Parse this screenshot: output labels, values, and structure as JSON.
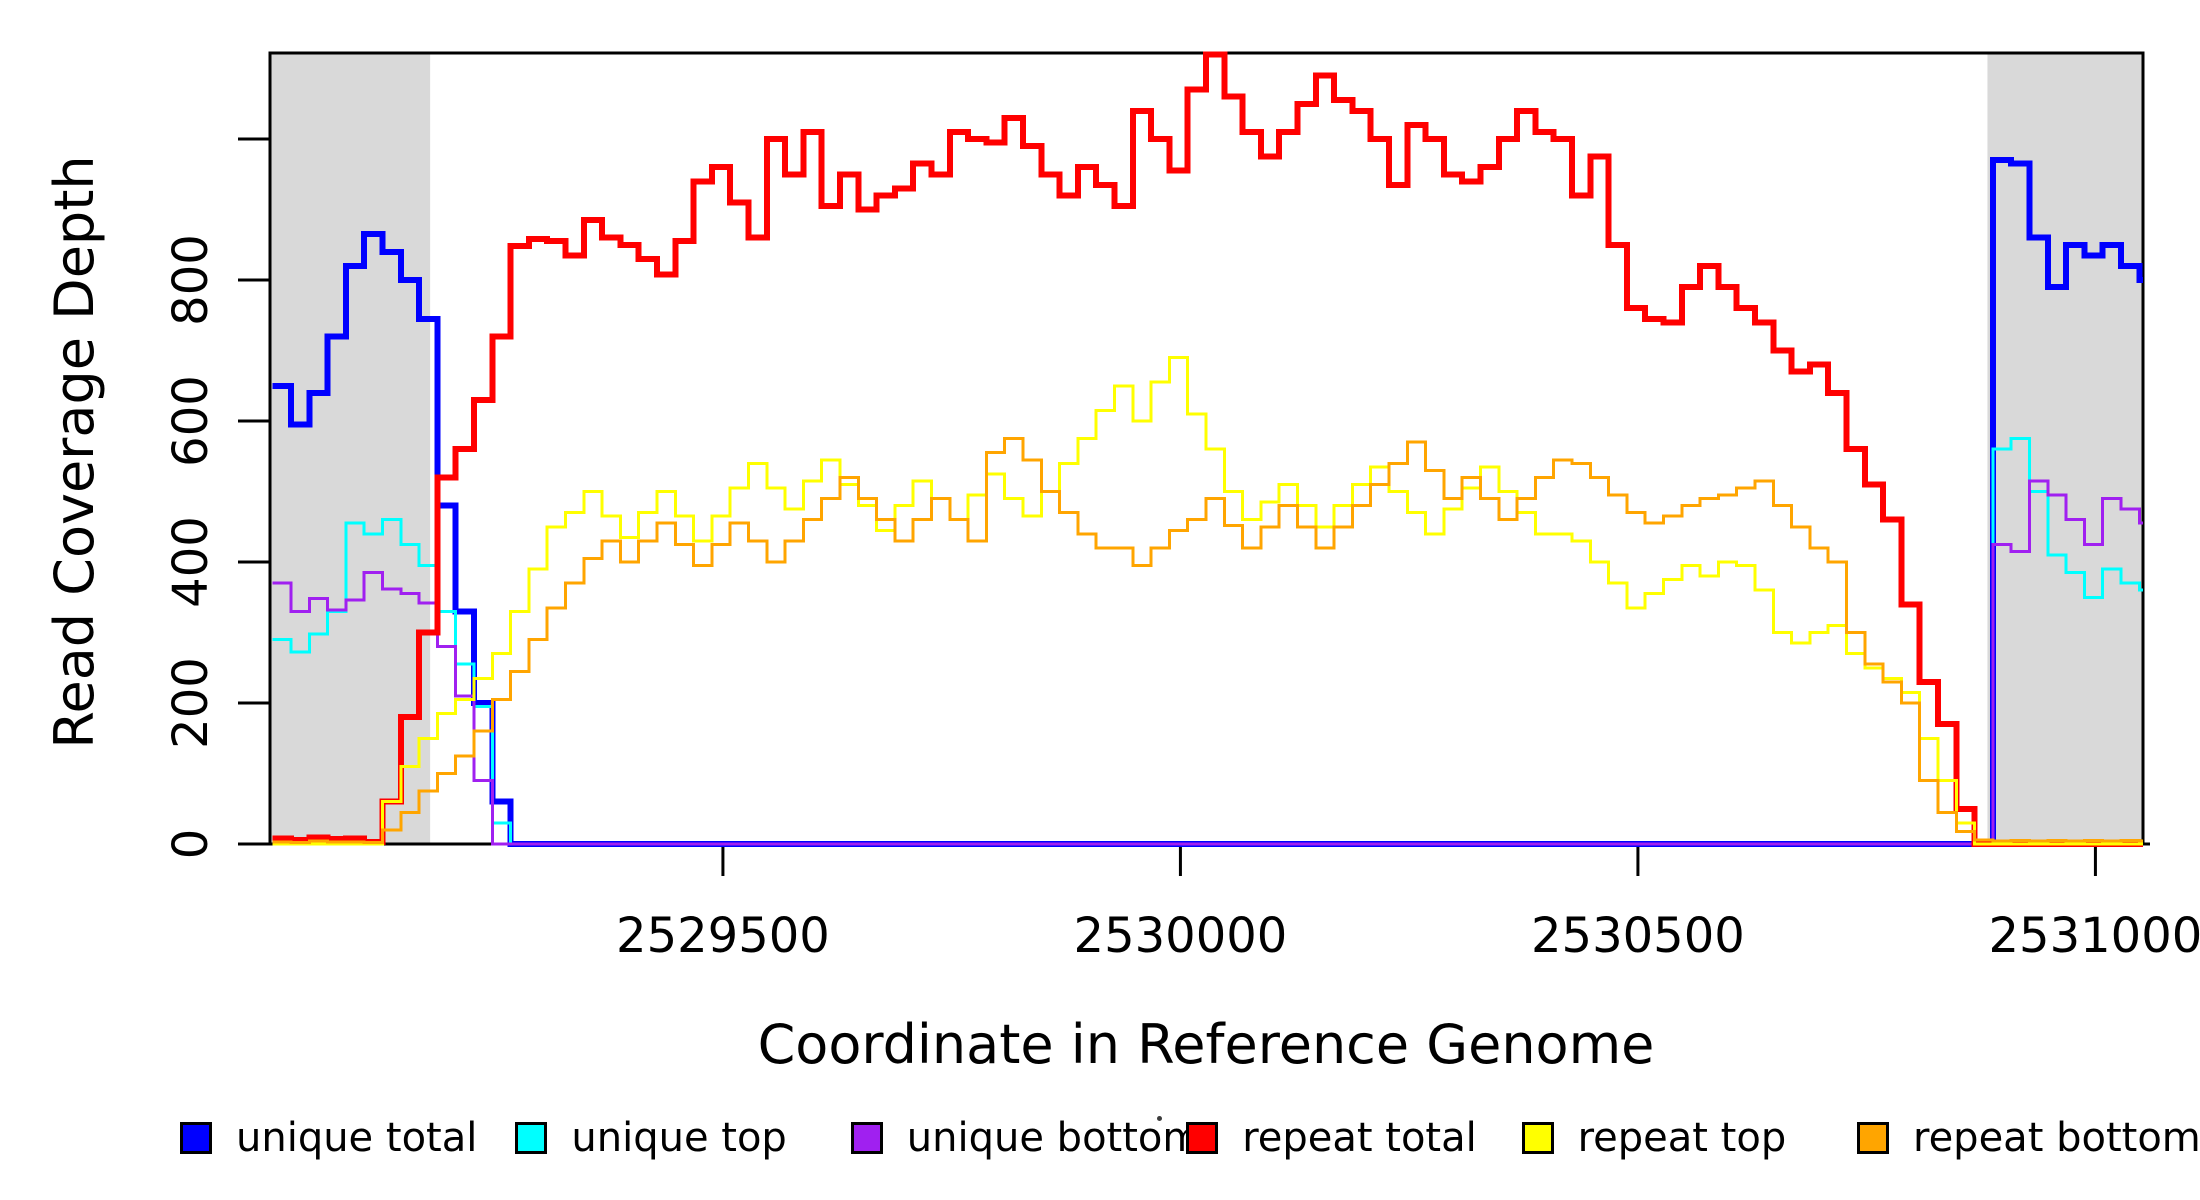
{
  "axes": {
    "x": {
      "label": "Coordinate in Reference Genome",
      "ticks": [
        {
          "value": 2529500,
          "label": "2529500"
        },
        {
          "value": 2530000,
          "label": "2530000"
        },
        {
          "value": 2530500,
          "label": "2530500"
        },
        {
          "value": 2531000,
          "label": "2531000"
        }
      ],
      "range": [
        2529005,
        2531052
      ]
    },
    "y": {
      "label": "Read Coverage Depth",
      "ticks": [
        {
          "value": 0,
          "label": "0"
        },
        {
          "value": 200,
          "label": "200"
        },
        {
          "value": 400,
          "label": "400"
        },
        {
          "value": 600,
          "label": "600"
        },
        {
          "value": 800,
          "label": "800"
        },
        {
          "value": 1000,
          "label": ""
        }
      ],
      "range": [
        0,
        1122
      ]
    }
  },
  "legend": {
    "items": [
      {
        "label": "unique total",
        "color": "#0000FF"
      },
      {
        "label": "unique top",
        "color": "#00FFFF"
      },
      {
        "label": "unique bottom",
        "color": "#A020F0"
      },
      {
        "label": "repeat total",
        "color": "#FF0000"
      },
      {
        "label": "repeat top",
        "color": "#FFFF00"
      },
      {
        "label": "repeat bottom",
        "color": "#FFA500"
      }
    ]
  },
  "chart_data": {
    "type": "line",
    "step": true,
    "grid": false,
    "title": "",
    "xlabel": "Coordinate in Reference Genome",
    "ylabel": "Read Coverage Depth",
    "legend_position": "bottom",
    "xlim": [
      2529005,
      2531052
    ],
    "ylim": [
      0,
      1122
    ],
    "x_ticks": [
      2529500,
      2530000,
      2530500,
      2531000
    ],
    "y_ticks": [
      0,
      200,
      400,
      600,
      800,
      1000
    ],
    "x_start": 2529008,
    "x_step": 20,
    "plot_bg": "#FFFFFF",
    "shaded_x_bands": [
      {
        "x1": 2529005,
        "x2": 2529180,
        "color": "#D9D9D9"
      },
      {
        "x1": 2530882,
        "x2": 2531052,
        "color": "#D9D9D9"
      }
    ],
    "series": [
      {
        "name": "unique total",
        "color": "#0000FF",
        "width": 6,
        "values": [
          650,
          595,
          640,
          720,
          820,
          865,
          840,
          800,
          745,
          480,
          330,
          200,
          60,
          0,
          0,
          0,
          0,
          0,
          0,
          0,
          0,
          0,
          0,
          0,
          0,
          0,
          0,
          0,
          0,
          0,
          0,
          0,
          0,
          0,
          0,
          0,
          0,
          0,
          0,
          0,
          0,
          0,
          0,
          0,
          0,
          0,
          0,
          0,
          0,
          0,
          0,
          0,
          0,
          0,
          0,
          0,
          0,
          0,
          0,
          0,
          0,
          0,
          0,
          0,
          0,
          0,
          0,
          0,
          0,
          0,
          0,
          0,
          0,
          0,
          0,
          0,
          0,
          0,
          0,
          0,
          0,
          0,
          0,
          0,
          0,
          0,
          0,
          0,
          0,
          0,
          0,
          0,
          0,
          0,
          970,
          965,
          860,
          790,
          850,
          835,
          850,
          820,
          800
        ]
      },
      {
        "name": "unique top",
        "color": "#00FFFF",
        "width": 3,
        "values": [
          290,
          272,
          298,
          330,
          455,
          440,
          460,
          425,
          395,
          330,
          255,
          195,
          30,
          0,
          0,
          0,
          0,
          0,
          0,
          0,
          0,
          0,
          0,
          0,
          0,
          0,
          0,
          0,
          0,
          0,
          0,
          0,
          0,
          0,
          0,
          0,
          0,
          0,
          0,
          0,
          0,
          0,
          0,
          0,
          0,
          0,
          0,
          0,
          0,
          0,
          0,
          0,
          0,
          0,
          0,
          0,
          0,
          0,
          0,
          0,
          0,
          0,
          0,
          0,
          0,
          0,
          0,
          0,
          0,
          0,
          0,
          0,
          0,
          0,
          0,
          0,
          0,
          0,
          0,
          0,
          0,
          0,
          0,
          0,
          0,
          0,
          0,
          0,
          0,
          0,
          0,
          0,
          0,
          0,
          560,
          575,
          500,
          410,
          385,
          350,
          390,
          370,
          360
        ]
      },
      {
        "name": "unique bottom",
        "color": "#A020F0",
        "width": 3,
        "values": [
          370,
          330,
          348,
          332,
          346,
          385,
          362,
          355,
          342,
          280,
          210,
          90,
          0,
          0,
          0,
          0,
          0,
          0,
          0,
          0,
          0,
          0,
          0,
          0,
          0,
          0,
          0,
          0,
          0,
          0,
          0,
          0,
          0,
          0,
          0,
          0,
          0,
          0,
          0,
          0,
          0,
          0,
          0,
          0,
          0,
          0,
          0,
          0,
          0,
          0,
          0,
          0,
          0,
          0,
          0,
          0,
          0,
          0,
          0,
          0,
          0,
          0,
          0,
          0,
          0,
          0,
          0,
          0,
          0,
          0,
          0,
          0,
          0,
          0,
          0,
          0,
          0,
          0,
          0,
          0,
          0,
          0,
          0,
          0,
          0,
          0,
          0,
          0,
          0,
          0,
          0,
          0,
          0,
          0,
          425,
          415,
          515,
          495,
          460,
          425,
          490,
          475,
          455
        ]
      },
      {
        "name": "repeat total",
        "color": "#FF0000",
        "width": 6,
        "values": [
          8,
          6,
          9,
          7,
          8,
          3,
          60,
          180,
          300,
          520,
          560,
          630,
          720,
          848,
          858,
          855,
          835,
          885,
          860,
          850,
          830,
          808,
          855,
          940,
          960,
          910,
          860,
          1000,
          950,
          1010,
          905,
          950,
          900,
          920,
          930,
          965,
          950,
          1010,
          1000,
          995,
          1030,
          990,
          950,
          920,
          960,
          935,
          905,
          1040,
          1000,
          955,
          1070,
          1120,
          1060,
          1010,
          975,
          1010,
          1050,
          1090,
          1055,
          1040,
          1000,
          935,
          1020,
          1000,
          950,
          940,
          960,
          1000,
          1040,
          1010,
          1000,
          920,
          975,
          850,
          760,
          745,
          740,
          790,
          820,
          790,
          760,
          740,
          700,
          670,
          680,
          640,
          560,
          510,
          460,
          340,
          230,
          170,
          50,
          0,
          0,
          0,
          0,
          0,
          0,
          0,
          0,
          0,
          0
        ]
      },
      {
        "name": "repeat top",
        "color": "#FFFF00",
        "width": 3,
        "values": [
          0,
          0,
          0,
          0,
          0,
          0,
          60,
          110,
          150,
          185,
          205,
          235,
          270,
          330,
          390,
          450,
          470,
          500,
          465,
          435,
          470,
          500,
          465,
          430,
          465,
          505,
          540,
          505,
          475,
          515,
          545,
          510,
          480,
          445,
          480,
          515,
          490,
          460,
          495,
          525,
          490,
          465,
          500,
          540,
          575,
          615,
          650,
          600,
          655,
          690,
          610,
          560,
          500,
          460,
          485,
          510,
          480,
          450,
          480,
          510,
          535,
          500,
          470,
          440,
          475,
          505,
          535,
          500,
          470,
          440,
          440,
          430,
          400,
          370,
          335,
          355,
          375,
          395,
          380,
          400,
          395,
          360,
          300,
          285,
          300,
          310,
          270,
          250,
          235,
          215,
          150,
          90,
          30,
          0,
          0,
          0,
          0,
          0,
          0,
          0,
          0,
          0,
          0
        ]
      },
      {
        "name": "repeat bottom",
        "color": "#FFA500",
        "width": 3,
        "values": [
          3,
          2,
          4,
          3,
          3,
          2,
          20,
          45,
          75,
          100,
          125,
          160,
          205,
          245,
          290,
          335,
          370,
          405,
          430,
          400,
          430,
          455,
          425,
          395,
          425,
          455,
          430,
          400,
          430,
          460,
          490,
          520,
          490,
          460,
          430,
          460,
          490,
          460,
          430,
          555,
          575,
          545,
          500,
          470,
          440,
          420,
          420,
          395,
          420,
          445,
          460,
          490,
          452,
          420,
          450,
          480,
          450,
          420,
          450,
          480,
          510,
          540,
          570,
          530,
          490,
          520,
          490,
          460,
          490,
          520,
          545,
          540,
          520,
          495,
          470,
          455,
          465,
          480,
          490,
          495,
          505,
          515,
          480,
          450,
          420,
          400,
          300,
          255,
          230,
          200,
          90,
          45,
          18,
          6,
          4,
          5,
          4,
          5,
          4,
          5,
          4,
          5,
          4
        ]
      }
    ]
  }
}
